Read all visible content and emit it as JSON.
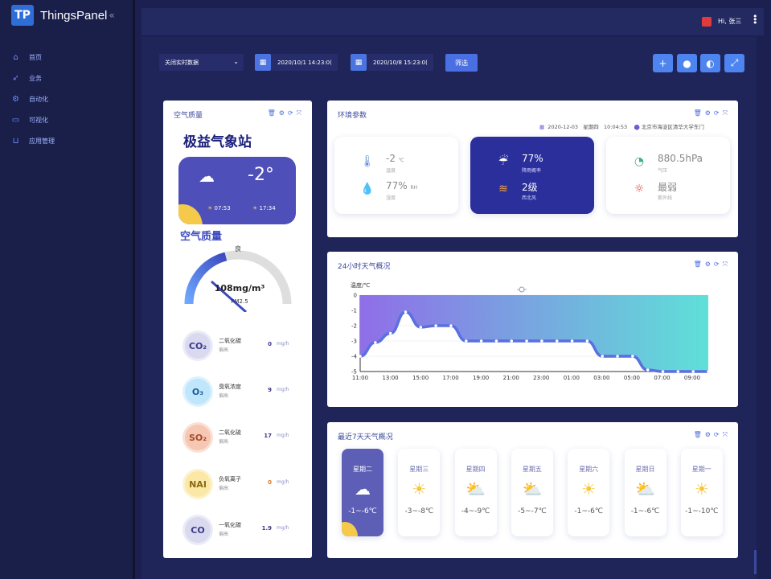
{
  "app": {
    "name": "ThingsPanel",
    "logo_glyph": "TP",
    "collapse_glyph": "«"
  },
  "nav": [
    {
      "label": "首页",
      "icon": "home-icon",
      "glyph": "⌂"
    },
    {
      "label": "业务",
      "icon": "rocket-icon",
      "glyph": "➶"
    },
    {
      "label": "自动化",
      "icon": "automation-icon",
      "glyph": "⚙"
    },
    {
      "label": "可视化",
      "icon": "monitor-icon",
      "glyph": "▭"
    },
    {
      "label": "应用管理",
      "icon": "basket-icon",
      "glyph": "⊔"
    }
  ],
  "topbar": {
    "greeting": "Hi, 张三",
    "flag": "china-flag-icon",
    "kebab": "⋮"
  },
  "filter": {
    "select_value": "关闭实时数据",
    "start_date": "2020/10/1 14:23:0(",
    "end_date": "2020/10/8 15:23:0(",
    "filter_label": "筛选"
  },
  "toolbar": [
    {
      "name": "add-button",
      "glyph": "+"
    },
    {
      "name": "water-drop-button",
      "glyph": "●"
    },
    {
      "name": "theme-button",
      "glyph": "◐"
    },
    {
      "name": "fullscreen-button",
      "glyph": "⤢"
    }
  ],
  "air": {
    "title": "空气质量",
    "station": "极益气象站",
    "temp": "-2°",
    "sunrise": "07:53",
    "sunset": "17:34",
    "aq_title": "空气质量",
    "gauge_label": "良",
    "gauge_value": "108mg/m³",
    "gauge_sub": "PM2.5",
    "gauge_level": 0.42,
    "pollutants": [
      {
        "symbol": "CO₂",
        "name": "二氧化碳",
        "level": "偏高",
        "value": "0",
        "unit": "mg/h",
        "bg": "#d9d9f0",
        "fg": "#3a3a8a",
        "vc": "#3a3a8a"
      },
      {
        "symbol": "O₃",
        "name": "臭氧浓度",
        "level": "偏高",
        "value": "9",
        "unit": "mg/h",
        "bg": "#bfe6fb",
        "fg": "#1a5c9a",
        "vc": "#3a3a8a"
      },
      {
        "symbol": "SO₂",
        "name": "二氧化硫",
        "level": "偏高",
        "value": "17",
        "unit": "mg/h",
        "bg": "#f6c7b3",
        "fg": "#a84a2a",
        "vc": "#3a3a8a"
      },
      {
        "symbol": "NAI",
        "name": "负氧离子",
        "level": "偏高",
        "value": "0",
        "unit": "mg/h",
        "bg": "#fbe7a6",
        "fg": "#8a6a10",
        "vc": "#e07a2a"
      },
      {
        "symbol": "CO",
        "name": "一氧化碳",
        "level": "偏高",
        "value": "1.9",
        "unit": "mg/h",
        "bg": "#d9d9f0",
        "fg": "#3a3a8a",
        "vc": "#3a3a8a"
      }
    ]
  },
  "env": {
    "title": "环境参数",
    "date": "2020-12-03",
    "weekday": "星期四",
    "time": "10:04:53",
    "location": "北京市海淀区清华大学东门",
    "cards": [
      {
        "active": false,
        "rows": [
          {
            "icon": "thermometer-icon",
            "glyph": "🌡",
            "value": "-2",
            "unit": "℃",
            "label": "温度"
          },
          {
            "icon": "humidity-icon",
            "glyph": "💧",
            "value": "77%",
            "unit": "RH",
            "label": "湿度"
          }
        ]
      },
      {
        "active": true,
        "rows": [
          {
            "icon": "rain-icon",
            "glyph": "☔",
            "value": "77%",
            "unit": "",
            "label": "降雨概率"
          },
          {
            "icon": "wind-icon",
            "glyph": "≋",
            "value": "2级",
            "unit": "",
            "label": "西北风"
          }
        ]
      },
      {
        "active": false,
        "rows": [
          {
            "icon": "pressure-gauge-icon",
            "glyph": "◔",
            "value": "880.5hPa",
            "unit": "",
            "label": "气压"
          },
          {
            "icon": "uv-sun-icon",
            "glyph": "☼",
            "value": "最弱",
            "unit": "",
            "label": "紫外线"
          }
        ]
      }
    ]
  },
  "chart_data": {
    "type": "area",
    "title": "24小时天气概况",
    "ylabel": "温度/℃",
    "ylim": [
      -5,
      0
    ],
    "yticks": [
      "0",
      "-1",
      "-2",
      "-3",
      "-4",
      "-5"
    ],
    "xticks": [
      "11:00",
      "13:00",
      "15:00",
      "17:00",
      "19:00",
      "21:00",
      "23:00",
      "01:00",
      "03:00",
      "05:00",
      "07:00",
      "09:00"
    ],
    "values": [
      -4,
      -3.1,
      -2.5,
      -1.1,
      -2.1,
      -2,
      -2,
      -3,
      -3,
      -3,
      -3,
      -3,
      -3,
      -3,
      -3,
      -3,
      -4,
      -4,
      -4,
      -4.9,
      -5,
      -5,
      -5,
      -5
    ],
    "colors": [
      "#8f6ee8",
      "#5fe0d8"
    ]
  },
  "week": {
    "title": "最近7天天气概况",
    "days": [
      {
        "name": "星期二",
        "range": "-1~-6℃",
        "icon": "cloud-icon",
        "glyph": "☁",
        "active": true
      },
      {
        "name": "星期三",
        "range": "-3~-8℃",
        "icon": "sun-icon",
        "glyph": "☀",
        "active": false
      },
      {
        "name": "星期四",
        "range": "-4~-9℃",
        "icon": "sun-cloud-icon",
        "glyph": "⛅",
        "active": false
      },
      {
        "name": "星期五",
        "range": "-5~-7℃",
        "icon": "sun-cloud-icon",
        "glyph": "⛅",
        "active": false
      },
      {
        "name": "星期六",
        "range": "-1~-6℃",
        "icon": "sun-icon",
        "glyph": "☀",
        "active": false
      },
      {
        "name": "星期日",
        "range": "-1~-6℃",
        "icon": "sun-cloud-icon",
        "glyph": "⛅",
        "active": false
      },
      {
        "name": "星期一",
        "range": "-1~-10℃",
        "icon": "sun-icon",
        "glyph": "☀",
        "active": false
      }
    ]
  }
}
